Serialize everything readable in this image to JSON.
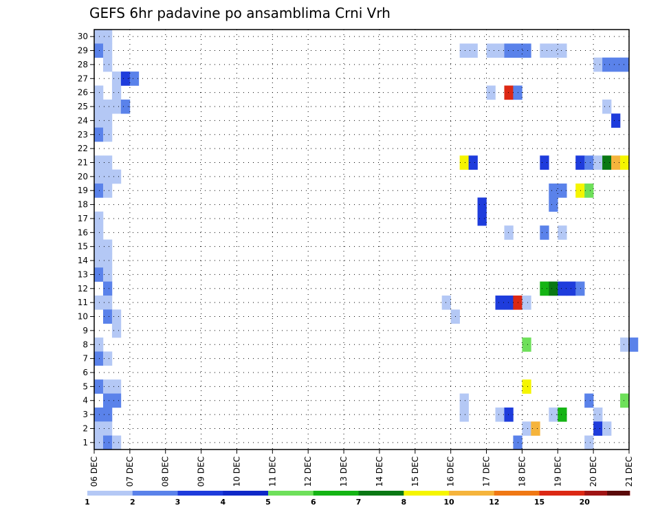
{
  "chart_data": {
    "type": "heatmap",
    "title": "GEFS 6hr padavine po ansamblima Crni Vrh",
    "y_range": [
      1,
      30
    ],
    "y_ticks": [
      "1",
      "2",
      "3",
      "4",
      "5",
      "6",
      "7",
      "8",
      "9",
      "10",
      "11",
      "12",
      "13",
      "14",
      "15",
      "16",
      "17",
      "18",
      "19",
      "20",
      "21",
      "22",
      "23",
      "24",
      "25",
      "26",
      "27",
      "28",
      "29",
      "30"
    ],
    "x_ticks": [
      "06 DEC",
      "07 DEC",
      "08 DEC",
      "09 DEC",
      "10 DEC",
      "11 DEC",
      "12 DEC",
      "13 DEC",
      "14 DEC",
      "15 DEC",
      "16 DEC",
      "17 DEC",
      "18 DEC",
      "19 DEC",
      "20 DEC",
      "21 DEC"
    ],
    "x_unit": "6-hour steps from 06 DEC 00Z (4 steps per day)",
    "levels": [
      "1",
      "2",
      "3",
      "4",
      "5",
      "6",
      "7",
      "8",
      "10",
      "12",
      "15",
      "20"
    ],
    "level_colors": [
      "#b4c8f5",
      "#5a82ea",
      "#1e3cdc",
      "#0f28c8",
      "#6ee05a",
      "#14b414",
      "#0a7814",
      "#f5f500",
      "#f5b43c",
      "#f07814",
      "#dc2814",
      "#a01414",
      "#5a0a0a"
    ],
    "cells": [
      {
        "m": 30,
        "t": 0,
        "c": 0
      },
      {
        "m": 30,
        "t": 1,
        "c": 0
      },
      {
        "m": 29,
        "t": 0,
        "c": 1
      },
      {
        "m": 29,
        "t": 1,
        "c": 0
      },
      {
        "m": 29,
        "t": 41,
        "c": 0
      },
      {
        "m": 29,
        "t": 42,
        "c": 0
      },
      {
        "m": 29,
        "t": 44,
        "c": 0
      },
      {
        "m": 29,
        "t": 45,
        "c": 0
      },
      {
        "m": 29,
        "t": 46,
        "c": 1
      },
      {
        "m": 29,
        "t": 47,
        "c": 1
      },
      {
        "m": 29,
        "t": 48,
        "c": 1
      },
      {
        "m": 29,
        "t": 50,
        "c": 0
      },
      {
        "m": 29,
        "t": 51,
        "c": 0
      },
      {
        "m": 29,
        "t": 52,
        "c": 0
      },
      {
        "m": 28,
        "t": 1,
        "c": 0
      },
      {
        "m": 28,
        "t": 56,
        "c": 0
      },
      {
        "m": 28,
        "t": 57,
        "c": 1
      },
      {
        "m": 28,
        "t": 58,
        "c": 1
      },
      {
        "m": 28,
        "t": 59,
        "c": 1
      },
      {
        "m": 27,
        "t": 2,
        "c": 0
      },
      {
        "m": 27,
        "t": 3,
        "c": 2
      },
      {
        "m": 27,
        "t": 4,
        "c": 1
      },
      {
        "m": 26,
        "t": 0,
        "c": 0
      },
      {
        "m": 26,
        "t": 2,
        "c": 0
      },
      {
        "m": 26,
        "t": 44,
        "c": 0
      },
      {
        "m": 26,
        "t": 46,
        "c": 10
      },
      {
        "m": 26,
        "t": 47,
        "c": 1
      },
      {
        "m": 25,
        "t": 0,
        "c": 0
      },
      {
        "m": 25,
        "t": 1,
        "c": 0
      },
      {
        "m": 25,
        "t": 2,
        "c": 0
      },
      {
        "m": 25,
        "t": 3,
        "c": 1
      },
      {
        "m": 25,
        "t": 57,
        "c": 0
      },
      {
        "m": 24,
        "t": 0,
        "c": 0
      },
      {
        "m": 24,
        "t": 1,
        "c": 0
      },
      {
        "m": 24,
        "t": 58,
        "c": 2
      },
      {
        "m": 23,
        "t": 0,
        "c": 1
      },
      {
        "m": 23,
        "t": 1,
        "c": 0
      },
      {
        "m": 21,
        "t": 0,
        "c": 0
      },
      {
        "m": 21,
        "t": 1,
        "c": 0
      },
      {
        "m": 21,
        "t": 41,
        "c": 7
      },
      {
        "m": 21,
        "t": 42,
        "c": 2
      },
      {
        "m": 21,
        "t": 50,
        "c": 2
      },
      {
        "m": 21,
        "t": 54,
        "c": 2
      },
      {
        "m": 21,
        "t": 55,
        "c": 1
      },
      {
        "m": 21,
        "t": 56,
        "c": 0
      },
      {
        "m": 21,
        "t": 57,
        "c": 6
      },
      {
        "m": 21,
        "t": 58,
        "c": 8
      },
      {
        "m": 21,
        "t": 59,
        "c": 7
      },
      {
        "m": 20,
        "t": 0,
        "c": 0
      },
      {
        "m": 20,
        "t": 1,
        "c": 0
      },
      {
        "m": 20,
        "t": 2,
        "c": 0
      },
      {
        "m": 19,
        "t": 0,
        "c": 1
      },
      {
        "m": 19,
        "t": 1,
        "c": 0
      },
      {
        "m": 19,
        "t": 51,
        "c": 1
      },
      {
        "m": 19,
        "t": 52,
        "c": 1
      },
      {
        "m": 19,
        "t": 54,
        "c": 7
      },
      {
        "m": 19,
        "t": 55,
        "c": 4
      },
      {
        "m": 18,
        "t": 43,
        "c": 2
      },
      {
        "m": 18,
        "t": 51,
        "c": 1
      },
      {
        "m": 17,
        "t": 0,
        "c": 0
      },
      {
        "m": 17,
        "t": 43,
        "c": 2
      },
      {
        "m": 16,
        "t": 0,
        "c": 0
      },
      {
        "m": 16,
        "t": 46,
        "c": 0
      },
      {
        "m": 16,
        "t": 50,
        "c": 1
      },
      {
        "m": 16,
        "t": 52,
        "c": 0
      },
      {
        "m": 15,
        "t": 0,
        "c": 0
      },
      {
        "m": 15,
        "t": 1,
        "c": 0
      },
      {
        "m": 14,
        "t": 0,
        "c": 0
      },
      {
        "m": 14,
        "t": 1,
        "c": 0
      },
      {
        "m": 13,
        "t": 0,
        "c": 1
      },
      {
        "m": 13,
        "t": 1,
        "c": 0
      },
      {
        "m": 12,
        "t": 1,
        "c": 1
      },
      {
        "m": 12,
        "t": 50,
        "c": 5
      },
      {
        "m": 12,
        "t": 51,
        "c": 6
      },
      {
        "m": 12,
        "t": 52,
        "c": 2
      },
      {
        "m": 12,
        "t": 53,
        "c": 2
      },
      {
        "m": 12,
        "t": 54,
        "c": 1
      },
      {
        "m": 11,
        "t": 0,
        "c": 0
      },
      {
        "m": 11,
        "t": 1,
        "c": 0
      },
      {
        "m": 11,
        "t": 39,
        "c": 0
      },
      {
        "m": 11,
        "t": 45,
        "c": 2
      },
      {
        "m": 11,
        "t": 46,
        "c": 2
      },
      {
        "m": 11,
        "t": 47,
        "c": 10
      },
      {
        "m": 11,
        "t": 48,
        "c": 0
      },
      {
        "m": 10,
        "t": 1,
        "c": 1
      },
      {
        "m": 10,
        "t": 2,
        "c": 0
      },
      {
        "m": 10,
        "t": 40,
        "c": 0
      },
      {
        "m": 9,
        "t": 2,
        "c": 0
      },
      {
        "m": 8,
        "t": 0,
        "c": 0
      },
      {
        "m": 8,
        "t": 48,
        "c": 4
      },
      {
        "m": 8,
        "t": 59,
        "c": 0
      },
      {
        "m": 8,
        "t": 60,
        "c": 1
      },
      {
        "m": 7,
        "t": 0,
        "c": 1
      },
      {
        "m": 7,
        "t": 1,
        "c": 0
      },
      {
        "m": 5,
        "t": 0,
        "c": 1
      },
      {
        "m": 5,
        "t": 1,
        "c": 0
      },
      {
        "m": 5,
        "t": 2,
        "c": 0
      },
      {
        "m": 5,
        "t": 48,
        "c": 7
      },
      {
        "m": 4,
        "t": 1,
        "c": 1
      },
      {
        "m": 4,
        "t": 2,
        "c": 1
      },
      {
        "m": 4,
        "t": 41,
        "c": 0
      },
      {
        "m": 4,
        "t": 55,
        "c": 1
      },
      {
        "m": 4,
        "t": 59,
        "c": 4
      },
      {
        "m": 3,
        "t": 0,
        "c": 1
      },
      {
        "m": 3,
        "t": 1,
        "c": 1
      },
      {
        "m": 3,
        "t": 41,
        "c": 0
      },
      {
        "m": 3,
        "t": 45,
        "c": 0
      },
      {
        "m": 3,
        "t": 46,
        "c": 2
      },
      {
        "m": 3,
        "t": 51,
        "c": 0
      },
      {
        "m": 3,
        "t": 52,
        "c": 5
      },
      {
        "m": 3,
        "t": 56,
        "c": 0
      },
      {
        "m": 2,
        "t": 0,
        "c": 0
      },
      {
        "m": 2,
        "t": 1,
        "c": 0
      },
      {
        "m": 2,
        "t": 48,
        "c": 0
      },
      {
        "m": 2,
        "t": 49,
        "c": 8
      },
      {
        "m": 2,
        "t": 56,
        "c": 2
      },
      {
        "m": 2,
        "t": 57,
        "c": 0
      },
      {
        "m": 1,
        "t": 0,
        "c": 0
      },
      {
        "m": 1,
        "t": 1,
        "c": 1
      },
      {
        "m": 1,
        "t": 2,
        "c": 0
      },
      {
        "m": 1,
        "t": 47,
        "c": 1
      },
      {
        "m": 1,
        "t": 55,
        "c": 0
      }
    ]
  }
}
